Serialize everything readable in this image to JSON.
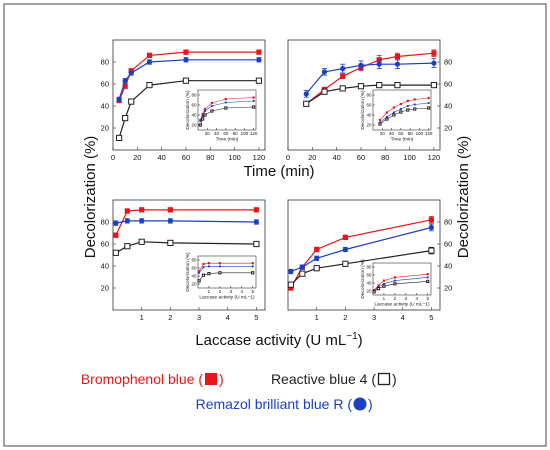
{
  "figure": {
    "ylabel": "Decolorization (%)",
    "ylabel_right": "Decolorization (%)",
    "time_xlabel": "Time (min)",
    "laccase_xlabel_main": "Laccase activity (U mL",
    "laccase_xlabel_sup": "−1",
    "laccase_xlabel_tail": ")"
  },
  "legend": {
    "bromophenol": {
      "label": "Bromophenol blue (",
      "tail": ")",
      "color": "#e8161c",
      "marker": "filled-square"
    },
    "reactive": {
      "label": "Reactive blue 4 (",
      "tail": ")",
      "color": "#222222",
      "marker": "open-square"
    },
    "remazol": {
      "label": "Remazol brilliant blue R (",
      "tail": ")",
      "color": "#1a3fc8",
      "marker": "filled-circle"
    }
  },
  "chart_data": [
    {
      "type": "line",
      "panel": "top-left",
      "xlim": [
        0,
        125
      ],
      "ylim": [
        0,
        100
      ],
      "xticks": [
        0,
        20,
        40,
        60,
        80,
        100,
        120
      ],
      "yticks": [
        20,
        40,
        60,
        80
      ],
      "series": [
        {
          "marker": "filled-square",
          "color": "#e8161c",
          "x": [
            5,
            10,
            15,
            30,
            60,
            120
          ],
          "y": [
            45,
            58,
            72,
            86,
            89,
            89
          ],
          "err": [
            2,
            2,
            2,
            2,
            2,
            2
          ]
        },
        {
          "marker": "filled-circle",
          "color": "#1a3fc8",
          "x": [
            5,
            10,
            15,
            30,
            60,
            120
          ],
          "y": [
            46,
            63,
            70,
            80,
            82,
            82
          ],
          "err": [
            2,
            2,
            2,
            2,
            2,
            2
          ]
        },
        {
          "marker": "open-square",
          "color": "#222222",
          "x": [
            5,
            10,
            15,
            30,
            60,
            120
          ],
          "y": [
            11,
            29,
            44,
            59,
            63,
            63
          ],
          "err": [
            2,
            2,
            2,
            2,
            2,
            2
          ]
        }
      ],
      "inset": {
        "ylabel": "Decolorization (%)",
        "xlabel": "Time (min)",
        "xticks": [
          20,
          40,
          60,
          80,
          100,
          120
        ],
        "yticks": [
          20,
          40,
          60,
          80
        ],
        "xlim": [
          0,
          125
        ],
        "ylim": [
          10,
          90
        ],
        "series": [
          {
            "marker": "filled-square",
            "color": "#e8161c",
            "x": [
              5,
              10,
              15,
              30,
              60,
              120
            ],
            "y": [
              30,
              42,
              52,
              64,
              72,
              75
            ]
          },
          {
            "marker": "filled-circle",
            "color": "#1a3fc8",
            "x": [
              5,
              10,
              15,
              30,
              60,
              120
            ],
            "y": [
              28,
              38,
              48,
              58,
              65,
              68
            ]
          },
          {
            "marker": "open-square",
            "color": "#222222",
            "x": [
              5,
              10,
              15,
              30,
              60,
              120
            ],
            "y": [
              20,
              32,
              40,
              48,
              54,
              56
            ]
          }
        ]
      }
    },
    {
      "type": "line",
      "panel": "top-right",
      "xlim": [
        0,
        125
      ],
      "ylim": [
        0,
        100
      ],
      "xticks": [
        0,
        20,
        40,
        60,
        80,
        100,
        120
      ],
      "yticks": [
        20,
        40,
        60,
        80
      ],
      "series": [
        {
          "marker": "filled-square",
          "color": "#e8161c",
          "x": [
            15,
            30,
            45,
            60,
            75,
            90,
            120
          ],
          "y": [
            42,
            55,
            67,
            75,
            82,
            85,
            88
          ],
          "err": [
            2,
            2,
            2,
            3,
            4,
            3,
            3
          ]
        },
        {
          "marker": "filled-circle",
          "color": "#1a3fc8",
          "x": [
            15,
            30,
            45,
            60,
            75,
            90,
            120
          ],
          "y": [
            51,
            71,
            74,
            77,
            78,
            78,
            79
          ],
          "err": [
            3,
            3,
            4,
            4,
            4,
            4,
            4
          ]
        },
        {
          "marker": "open-square",
          "color": "#222222",
          "x": [
            15,
            30,
            45,
            60,
            75,
            90,
            120
          ],
          "y": [
            42,
            53,
            56,
            58,
            59,
            59,
            59
          ],
          "err": [
            2,
            2,
            2,
            2,
            2,
            2,
            2
          ]
        }
      ],
      "inset": {
        "ylabel": "Decolorization (%)",
        "xlabel": "Time (min)",
        "xticks": [
          20,
          40,
          60,
          80,
          100,
          120
        ],
        "yticks": [
          20,
          40,
          60,
          80
        ],
        "xlim": [
          0,
          125
        ],
        "ylim": [
          10,
          90
        ],
        "series": [
          {
            "marker": "filled-square",
            "color": "#e8161c",
            "x": [
              15,
              30,
              45,
              60,
              75,
              90,
              120
            ],
            "y": [
              30,
              45,
              55,
              62,
              68,
              71,
              74
            ]
          },
          {
            "marker": "filled-circle",
            "color": "#1a3fc8",
            "x": [
              15,
              30,
              45,
              60,
              75,
              90,
              120
            ],
            "y": [
              25,
              36,
              45,
              52,
              58,
              61,
              64
            ]
          },
          {
            "marker": "open-square",
            "color": "#222222",
            "x": [
              15,
              30,
              45,
              60,
              75,
              90,
              120
            ],
            "y": [
              22,
              32,
              40,
              46,
              50,
              52,
              54
            ]
          }
        ]
      }
    },
    {
      "type": "line",
      "panel": "bottom-left",
      "xlim": [
        0,
        5.3
      ],
      "ylim": [
        0,
        100
      ],
      "xticks": [
        1,
        2,
        3,
        4,
        5
      ],
      "yticks": [
        20,
        40,
        60,
        80
      ],
      "series": [
        {
          "marker": "filled-square",
          "color": "#e8161c",
          "x": [
            0.1,
            0.5,
            1,
            2,
            5
          ],
          "y": [
            68,
            90,
            91,
            91,
            91
          ],
          "err": [
            2,
            2,
            2,
            2,
            2
          ]
        },
        {
          "marker": "filled-circle",
          "color": "#1a3fc8",
          "x": [
            0.1,
            0.5,
            1,
            2,
            5
          ],
          "y": [
            79,
            81,
            81,
            81,
            80
          ],
          "err": [
            2,
            2,
            2,
            2,
            2
          ]
        },
        {
          "marker": "open-square",
          "color": "#222222",
          "x": [
            0.1,
            0.5,
            1,
            2,
            5
          ],
          "y": [
            52,
            58,
            62,
            61,
            60
          ],
          "err": [
            2,
            2,
            2,
            2,
            2
          ]
        }
      ],
      "inset": {
        "ylabel": "Decolorization (%)",
        "xlabel": "Laccase activity (U mL−1)",
        "xticks": [
          1,
          2,
          3,
          4,
          5
        ],
        "yticks": [
          20,
          40,
          60,
          80
        ],
        "xlim": [
          0,
          5.3
        ],
        "ylim": [
          10,
          90
        ],
        "series": [
          {
            "marker": "filled-square",
            "color": "#e8161c",
            "x": [
              0.1,
              0.5,
              1,
              2,
              5
            ],
            "y": [
              52,
              70,
              72,
              72,
              72
            ]
          },
          {
            "marker": "filled-circle",
            "color": "#1a3fc8",
            "x": [
              0.1,
              0.5,
              1,
              2,
              5
            ],
            "y": [
              48,
              62,
              64,
              64,
              64
            ]
          },
          {
            "marker": "open-square",
            "color": "#222222",
            "x": [
              0.1,
              0.5,
              1,
              2,
              5
            ],
            "y": [
              28,
              42,
              46,
              48,
              48
            ]
          }
        ]
      }
    },
    {
      "type": "line",
      "panel": "bottom-right",
      "xlim": [
        0,
        5.3
      ],
      "ylim": [
        0,
        100
      ],
      "xticks": [
        1,
        2,
        3,
        4,
        5
      ],
      "yticks": [
        20,
        40,
        60,
        80
      ],
      "series": [
        {
          "marker": "filled-square",
          "color": "#e8161c",
          "x": [
            0.1,
            0.5,
            1,
            2,
            5
          ],
          "y": [
            20,
            39,
            55,
            66,
            82
          ],
          "err": [
            2,
            2,
            2,
            2,
            3
          ]
        },
        {
          "marker": "filled-circle",
          "color": "#1a3fc8",
          "x": [
            0.1,
            0.5,
            1,
            2,
            5
          ],
          "y": [
            35,
            39,
            47,
            55,
            75
          ],
          "err": [
            2,
            2,
            2,
            2,
            3
          ]
        },
        {
          "marker": "open-square",
          "color": "#222222",
          "x": [
            0.1,
            0.5,
            1,
            2,
            5
          ],
          "y": [
            23,
            33,
            38,
            42,
            54
          ],
          "err": [
            2,
            2,
            2,
            2,
            3
          ]
        }
      ],
      "inset": {
        "ylabel": "Decolorization (%)",
        "xlabel": "Laccase activity (U mL−1)",
        "xticks": [
          1,
          2,
          3,
          4,
          5
        ],
        "yticks": [
          20,
          40,
          60,
          80
        ],
        "xlim": [
          0,
          5.3
        ],
        "ylim": [
          10,
          90
        ],
        "series": [
          {
            "marker": "filled-square",
            "color": "#e8161c",
            "x": [
              0.1,
              0.5,
              1,
              2,
              5
            ],
            "y": [
              22,
              34,
              46,
              54,
              62
            ]
          },
          {
            "marker": "filled-circle",
            "color": "#1a3fc8",
            "x": [
              0.1,
              0.5,
              1,
              2,
              5
            ],
            "y": [
              20,
              30,
              38,
              46,
              54
            ]
          },
          {
            "marker": "open-square",
            "color": "#222222",
            "x": [
              0.1,
              0.5,
              1,
              2,
              5
            ],
            "y": [
              18,
              26,
              32,
              38,
              44
            ]
          }
        ]
      }
    }
  ]
}
